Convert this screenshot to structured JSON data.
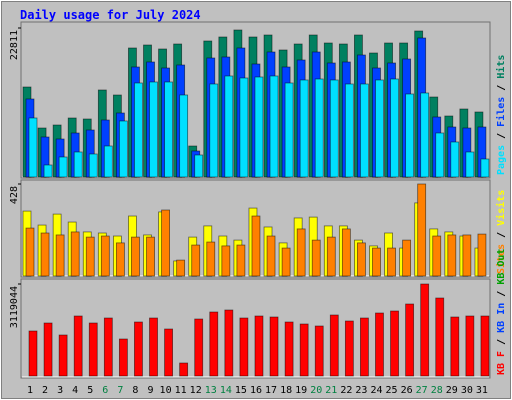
{
  "chart_data": [
    {
      "type": "bar",
      "title": "Daily usage for July 2024",
      "ylim": [
        0,
        22811
      ],
      "yticks": [
        22811
      ],
      "series": [
        {
          "name": "Pages",
          "color": "#00e0ff",
          "values": [
            9033,
            1837,
            3062,
            3828,
            3521,
            4746,
            8574,
            14391,
            14545,
            14545,
            12554,
            3368,
            14238,
            15463,
            15157,
            15310,
            15463,
            14391,
            14851,
            15004,
            14851,
            14238,
            14238,
            14851,
            15004,
            12707,
            12860,
            6736,
            5359,
            3828,
            2756
          ]
        },
        {
          "name": "Files",
          "color": "#0040ff",
          "values": [
            11942,
            6124,
            5818,
            6736,
            7196,
            8727,
            9798,
            16841,
            17607,
            16688,
            17147,
            3981,
            18219,
            18372,
            19750,
            17300,
            19138,
            16841,
            17913,
            19138,
            17454,
            17607,
            18678,
            16688,
            17454,
            18066,
            21281,
            9186,
            7655,
            7502,
            7655
          ]
        },
        {
          "name": "Hits",
          "color": "#008060",
          "values": [
            13779,
            7502,
            7961,
            9033,
            8880,
            13320,
            12554,
            19750,
            20209,
            19597,
            20362,
            4746,
            20822,
            21434,
            22506,
            21434,
            21740,
            19444,
            20362,
            21740,
            20515,
            20362,
            21740,
            18984,
            20515,
            20515,
            22353,
            12248,
            9339,
            10411,
            9952
          ]
        }
      ]
    },
    {
      "type": "bar",
      "ylim": [
        0,
        428
      ],
      "yticks": [
        428
      ],
      "series": [
        {
          "name": "Sites",
          "color": "#ff8000",
          "values": [
            223,
            200,
            191,
            205,
            181,
            186,
            154,
            181,
            181,
            307,
            74,
            144,
            158,
            140,
            144,
            279,
            186,
            130,
            219,
            167,
            181,
            219,
            154,
            130,
            130,
            167,
            428,
            186,
            191,
            191,
            195
          ]
        },
        {
          "name": "Visits",
          "color": "#ffff00",
          "values": [
            302,
            237,
            288,
            251,
            205,
            200,
            186,
            279,
            191,
            298,
            70,
            181,
            233,
            186,
            167,
            316,
            228,
            154,
            270,
            274,
            233,
            233,
            167,
            140,
            200,
            130,
            340,
            219,
            205,
            186,
            130
          ]
        }
      ]
    },
    {
      "type": "bar",
      "ylim": [
        0,
        3119044
      ],
      "yticks": [
        3119044
      ],
      "categories": [
        "1",
        "2",
        "3",
        "4",
        "5",
        "6",
        "7",
        "8",
        "9",
        "10",
        "11",
        "12",
        "13",
        "14",
        "15",
        "16",
        "17",
        "18",
        "19",
        "20",
        "21",
        "22",
        "23",
        "24",
        "25",
        "26",
        "27",
        "28",
        "29",
        "30",
        "31"
      ],
      "category_colors": [
        "#000000",
        "#000000",
        "#000000",
        "#000000",
        "#000000",
        "#008040",
        "#008040",
        "#000000",
        "#000000",
        "#000000",
        "#000000",
        "#000000",
        "#008040",
        "#008040",
        "#000000",
        "#000000",
        "#000000",
        "#000000",
        "#000000",
        "#008040",
        "#008040",
        "#000000",
        "#000000",
        "#000000",
        "#000000",
        "#000000",
        "#008040",
        "#008040",
        "#000000",
        "#000000",
        "#000000"
      ],
      "series": [
        {
          "name": "KB F",
          "color": "#ff0000",
          "values": [
            1525635,
            1796859,
            1390023,
            2034180,
            1796859,
            1966374,
            1254411,
            1830762,
            1966374,
            1593441,
            440739,
            1932471,
            2169792,
            2237598,
            1966374,
            2034180,
            2000277,
            1830762,
            1762956,
            1695150,
            2068083,
            1864665,
            1966374,
            2135889,
            2203695,
            2441016,
            3119044,
            2644434,
            2000277,
            2034180,
            2034180
          ]
        },
        {
          "name": "KB In",
          "color": "#0040ff"
        },
        {
          "name": "KB Out",
          "color": "#00a000"
        }
      ]
    }
  ],
  "legend_separator": "/"
}
